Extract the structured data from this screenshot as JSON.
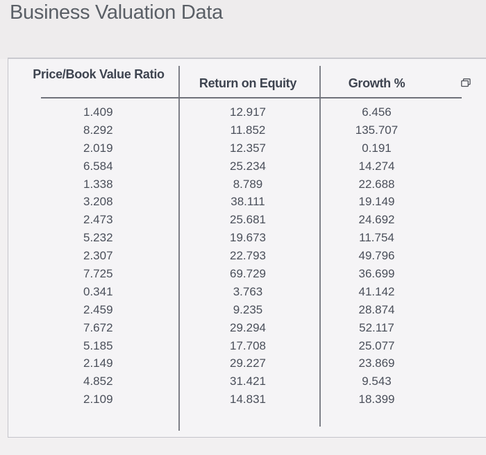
{
  "page": {
    "title": "Business Valuation Data"
  },
  "icons": {
    "cursor": "arrow-pointer-icon",
    "copy": "copy-icon"
  },
  "table": {
    "headers": [
      "Price/Book Value Ratio",
      "Return on Equity",
      "Growth %"
    ],
    "rows": [
      [
        "1.409",
        "12.917",
        "6.456"
      ],
      [
        "8.292",
        "11.852",
        "135.707"
      ],
      [
        "2.019",
        "12.357",
        "0.191"
      ],
      [
        "6.584",
        "25.234",
        "14.274"
      ],
      [
        "1.338",
        "8.789",
        "22.688"
      ],
      [
        "3.208",
        "38.111",
        "19.149"
      ],
      [
        "2.473",
        "25.681",
        "24.692"
      ],
      [
        "5.232",
        "19.673",
        "11.754"
      ],
      [
        "2.307",
        "22.793",
        "49.796"
      ],
      [
        "7.725",
        "69.729",
        "36.699"
      ],
      [
        "0.341",
        "3.763",
        "41.142"
      ],
      [
        "2.459",
        "9.235",
        "28.874"
      ],
      [
        "7.672",
        "29.294",
        "52.117"
      ],
      [
        "5.185",
        "17.708",
        "25.077"
      ],
      [
        "2.149",
        "29.227",
        "23.869"
      ],
      [
        "4.852",
        "31.421",
        "9.543"
      ],
      [
        "2.109",
        "14.831",
        "18.399"
      ]
    ]
  }
}
